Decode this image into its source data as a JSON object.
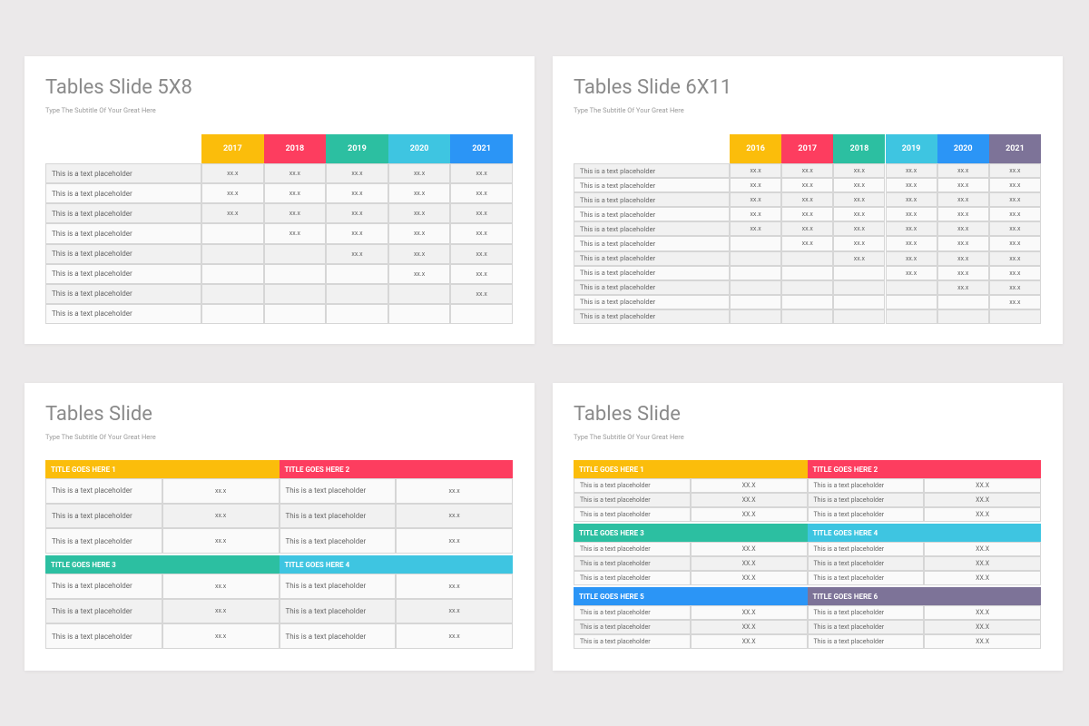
{
  "slides": [
    {
      "title": "Tables Slide 5X8",
      "subtitle": "Type The Subtitle Of Your Great Here",
      "columns": [
        {
          "label": "2017",
          "color": "#fbbd0b"
        },
        {
          "label": "2018",
          "color": "#fd3d5f"
        },
        {
          "label": "2019",
          "color": "#2cbfa1"
        },
        {
          "label": "2020",
          "color": "#3ec5e1"
        },
        {
          "label": "2021",
          "color": "#2b95f6"
        }
      ],
      "rows": [
        {
          "label": "This is a text placeholder",
          "cells": [
            "xx.x",
            "xx.x",
            "xx.x",
            "xx.x",
            "xx.x"
          ]
        },
        {
          "label": "This is a text placeholder",
          "cells": [
            "xx.x",
            "xx.x",
            "xx.x",
            "xx.x",
            "xx.x"
          ]
        },
        {
          "label": "This is a text placeholder",
          "cells": [
            "xx.x",
            "xx.x",
            "xx.x",
            "xx.x",
            "xx.x"
          ]
        },
        {
          "label": "This is a text placeholder",
          "cells": [
            null,
            "xx.x",
            "xx.x",
            "xx.x",
            "xx.x"
          ]
        },
        {
          "label": "This is a text placeholder",
          "cells": [
            null,
            null,
            "xx.x",
            "xx.x",
            "xx.x"
          ]
        },
        {
          "label": "This is a text placeholder",
          "cells": [
            null,
            null,
            null,
            "xx.x",
            "xx.x"
          ]
        },
        {
          "label": "This is a text placeholder",
          "cells": [
            null,
            null,
            null,
            null,
            "xx.x"
          ]
        },
        {
          "label": "This is a text placeholder",
          "cells": [
            null,
            null,
            null,
            null,
            null
          ]
        }
      ]
    },
    {
      "title": "Tables Slide 6X11",
      "subtitle": "Type The Subtitle Of Your Great Here",
      "columns": [
        {
          "label": "2016",
          "color": "#fbbd0b"
        },
        {
          "label": "2017",
          "color": "#fd3d5f"
        },
        {
          "label": "2018",
          "color": "#2cbfa1"
        },
        {
          "label": "2019",
          "color": "#3ec5e1"
        },
        {
          "label": "2020",
          "color": "#2b95f6"
        },
        {
          "label": "2021",
          "color": "#7d7398"
        }
      ],
      "rows": [
        {
          "label": "This is a text placeholder",
          "cells": [
            "xx.x",
            "xx.x",
            "xx.x",
            "xx.x",
            "xx.x",
            "xx.x"
          ]
        },
        {
          "label": "This is a text placeholder",
          "cells": [
            "xx.x",
            "xx.x",
            "xx.x",
            "xx.x",
            "xx.x",
            "xx.x"
          ]
        },
        {
          "label": "This is a text placeholder",
          "cells": [
            "xx.x",
            "xx.x",
            "xx.x",
            "xx.x",
            "xx.x",
            "xx.x"
          ]
        },
        {
          "label": "This is a text placeholder",
          "cells": [
            "xx.x",
            "xx.x",
            "xx.x",
            "xx.x",
            "xx.x",
            "xx.x"
          ]
        },
        {
          "label": "This is a text placeholder",
          "cells": [
            "xx.x",
            "xx.x",
            "xx.x",
            "xx.x",
            "xx.x",
            "xx.x"
          ]
        },
        {
          "label": "This is a text placeholder",
          "cells": [
            null,
            "xx.x",
            "xx.x",
            "xx.x",
            "xx.x",
            "xx.x"
          ]
        },
        {
          "label": "This is a text placeholder",
          "cells": [
            null,
            null,
            "xx.x",
            "xx.x",
            "xx.x",
            "xx.x"
          ]
        },
        {
          "label": "This is a text placeholder",
          "cells": [
            null,
            null,
            null,
            "xx.x",
            "xx.x",
            "xx.x"
          ]
        },
        {
          "label": "This is a text placeholder",
          "cells": [
            null,
            null,
            null,
            null,
            "xx.x",
            "xx.x"
          ]
        },
        {
          "label": "This is a text placeholder",
          "cells": [
            null,
            null,
            null,
            null,
            null,
            "xx.x"
          ]
        },
        {
          "label": "This is a text placeholder",
          "cells": [
            null,
            null,
            null,
            null,
            null,
            null
          ]
        }
      ]
    },
    {
      "title": "Tables Slide",
      "subtitle": "Type The Subtitle Of Your Great Here",
      "groups": [
        {
          "title": "TITLE GOES HERE 1",
          "color": "#fbbd0b",
          "rows": [
            [
              "This is a text placeholder",
              "xx.x"
            ],
            [
              "This is a text placeholder",
              "xx.x"
            ],
            [
              "This is a text placeholder",
              "xx.x"
            ]
          ]
        },
        {
          "title": "TITLE GOES HERE 2",
          "color": "#fd3d5f",
          "rows": [
            [
              "This is a text placeholder",
              "xx.x"
            ],
            [
              "This is a text placeholder",
              "xx.x"
            ],
            [
              "This is a text placeholder",
              "xx.x"
            ]
          ]
        },
        {
          "title": "TITLE GOES HERE 3",
          "color": "#2cbfa1",
          "rows": [
            [
              "This is a text placeholder",
              "xx.x"
            ],
            [
              "This is a text placeholder",
              "xx.x"
            ],
            [
              "This is a text placeholder",
              "xx.x"
            ]
          ]
        },
        {
          "title": "TITLE GOES HERE 4",
          "color": "#3ec5e1",
          "rows": [
            [
              "This is a text placeholder",
              "xx.x"
            ],
            [
              "This is a text placeholder",
              "xx.x"
            ],
            [
              "This is a text placeholder",
              "xx.x"
            ]
          ]
        }
      ]
    },
    {
      "title": "Tables Slide",
      "subtitle": "Type The Subtitle Of Your Great Here",
      "groups": [
        {
          "title": "TITLE GOES HERE 1",
          "color": "#fbbd0b",
          "rows": [
            [
              "This is a text placeholder",
              "XX.X"
            ],
            [
              "This is a text placeholder",
              "XX.X"
            ],
            [
              "This is a text placeholder",
              "XX.X"
            ]
          ]
        },
        {
          "title": "TITLE GOES HERE 2",
          "color": "#fd3d5f",
          "rows": [
            [
              "This is a text placeholder",
              "XX.X"
            ],
            [
              "This is a text placeholder",
              "XX.X"
            ],
            [
              "This is a text placeholder",
              "XX.X"
            ]
          ]
        },
        {
          "title": "TITLE GOES HERE 3",
          "color": "#2cbfa1",
          "rows": [
            [
              "This is a text placeholder",
              "XX.X"
            ],
            [
              "This is a text placeholder",
              "XX.X"
            ],
            [
              "This is a text placeholder",
              "XX.X"
            ]
          ]
        },
        {
          "title": "TITLE GOES HERE 4",
          "color": "#3ec5e1",
          "rows": [
            [
              "This is a text placeholder",
              "XX.X"
            ],
            [
              "This is a text placeholder",
              "XX.X"
            ],
            [
              "This is a text placeholder",
              "XX.X"
            ]
          ]
        },
        {
          "title": "TITLE GOES HERE 5",
          "color": "#2b95f6",
          "rows": [
            [
              "This is a text placeholder",
              "XX.X"
            ],
            [
              "This is a text placeholder",
              "XX.X"
            ],
            [
              "This is a text placeholder",
              "XX.X"
            ]
          ]
        },
        {
          "title": "TITLE GOES HERE 6",
          "color": "#7d7398",
          "rows": [
            [
              "This is a text placeholder",
              "XX.X"
            ],
            [
              "This is a text placeholder",
              "XX.X"
            ],
            [
              "This is a text placeholder",
              "XX.X"
            ]
          ]
        }
      ]
    }
  ]
}
